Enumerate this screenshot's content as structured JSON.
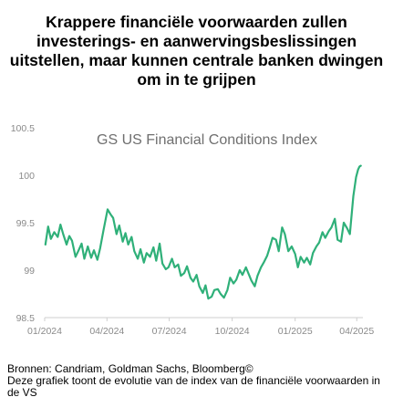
{
  "headline": "Krappere financiële voorwaarden zullen investerings- en aanwervingsbeslissingen uitstellen, maar kunnen centrale banken dwingen om in te grijpen",
  "footer": {
    "sources": "Bronnen: Candriam, Goldman Sachs, Bloomberg©",
    "note": "Deze grafiek toont de evolutie van de index van de financiële voorwaarden in de VS"
  },
  "colors": {
    "line": "#2fb079",
    "axis_text": "#8a8a8a",
    "title_text": "#6f6f6f",
    "axis_line": "#cfcfcf"
  },
  "chart_data": {
    "type": "line",
    "title": "GS US Financial Conditions Index",
    "xlabel": "",
    "ylabel": "",
    "ylim": [
      98.5,
      100.5
    ],
    "yticks": [
      98.5,
      99,
      99.5,
      100,
      100.5
    ],
    "ytick_labels": [
      "98.5",
      "99",
      "99.5",
      "100",
      "100.5"
    ],
    "xlim": [
      "2024-01-01",
      "2025-04-10"
    ],
    "xticks": [
      "2024-01-01",
      "2024-04-01",
      "2024-07-01",
      "2024-10-01",
      "2025-01-01",
      "2025-04-01"
    ],
    "xtick_labels": [
      "01/2024",
      "04/2024",
      "07/2024",
      "10/2024",
      "01/2025",
      "04/2025"
    ],
    "grid": false,
    "series": [
      {
        "x": [
          "2024-01-02",
          "2024-01-06",
          "2024-01-10",
          "2024-01-15",
          "2024-01-20",
          "2024-01-24",
          "2024-01-28",
          "2024-02-02",
          "2024-02-06",
          "2024-02-10",
          "2024-02-15",
          "2024-02-19",
          "2024-02-24",
          "2024-02-28",
          "2024-03-04",
          "2024-03-09",
          "2024-03-13",
          "2024-03-18",
          "2024-03-22",
          "2024-03-27",
          "2024-04-02",
          "2024-04-06",
          "2024-04-10",
          "2024-04-15",
          "2024-04-19",
          "2024-04-24",
          "2024-04-28",
          "2024-05-02",
          "2024-05-07",
          "2024-05-11",
          "2024-05-16",
          "2024-05-20",
          "2024-05-25",
          "2024-05-29",
          "2024-06-03",
          "2024-06-08",
          "2024-06-12",
          "2024-06-17",
          "2024-06-21",
          "2024-06-26",
          "2024-06-30",
          "2024-07-05",
          "2024-07-09",
          "2024-07-14",
          "2024-07-18",
          "2024-07-23",
          "2024-07-27",
          "2024-08-01",
          "2024-08-05",
          "2024-08-10",
          "2024-08-14",
          "2024-08-19",
          "2024-08-23",
          "2024-08-27",
          "2024-09-01",
          "2024-09-05",
          "2024-09-10",
          "2024-09-14",
          "2024-09-19",
          "2024-09-24",
          "2024-09-28",
          "2024-10-03",
          "2024-10-07",
          "2024-10-12",
          "2024-10-16",
          "2024-10-21",
          "2024-10-25",
          "2024-10-29",
          "2024-11-03",
          "2024-11-07",
          "2024-11-12",
          "2024-11-16",
          "2024-11-21",
          "2024-11-25",
          "2024-11-29",
          "2024-12-04",
          "2024-12-08",
          "2024-12-13",
          "2024-12-17",
          "2024-12-22",
          "2024-12-27",
          "2025-01-01",
          "2025-01-05",
          "2025-01-09",
          "2025-01-14",
          "2025-01-18",
          "2025-01-23",
          "2025-01-27",
          "2025-02-01",
          "2025-02-05",
          "2025-02-10",
          "2025-02-14",
          "2025-02-19",
          "2025-02-23",
          "2025-02-28",
          "2025-03-04",
          "2025-03-09",
          "2025-03-13",
          "2025-03-18",
          "2025-03-22",
          "2025-03-27",
          "2025-03-31",
          "2025-04-03",
          "2025-04-05",
          "2025-04-07"
        ],
        "values": [
          99.27,
          99.46,
          99.33,
          99.4,
          99.35,
          99.48,
          99.38,
          99.27,
          99.36,
          99.31,
          99.14,
          99.2,
          99.28,
          99.12,
          99.25,
          99.13,
          99.21,
          99.11,
          99.23,
          99.42,
          99.64,
          99.59,
          99.55,
          99.38,
          99.47,
          99.3,
          99.39,
          99.27,
          99.35,
          99.2,
          99.12,
          99.22,
          99.08,
          99.18,
          99.14,
          99.24,
          99.1,
          99.28,
          99.07,
          99.01,
          99.03,
          99.12,
          99.03,
          99.06,
          98.94,
          98.97,
          99.04,
          98.92,
          98.88,
          98.95,
          98.83,
          98.76,
          98.84,
          98.7,
          98.72,
          98.79,
          98.8,
          98.75,
          98.71,
          98.79,
          98.92,
          98.86,
          98.9,
          99.0,
          98.95,
          99.03,
          98.96,
          98.89,
          98.83,
          98.94,
          99.03,
          99.08,
          99.15,
          99.24,
          99.34,
          99.32,
          99.2,
          99.45,
          99.38,
          99.2,
          99.25,
          99.17,
          99.03,
          99.14,
          99.08,
          99.13,
          99.06,
          99.18,
          99.25,
          99.29,
          99.4,
          99.34,
          99.41,
          99.45,
          99.54,
          99.32,
          99.3,
          99.5,
          99.44,
          99.38,
          99.78,
          99.98,
          100.06,
          100.09,
          100.1
        ]
      }
    ]
  }
}
